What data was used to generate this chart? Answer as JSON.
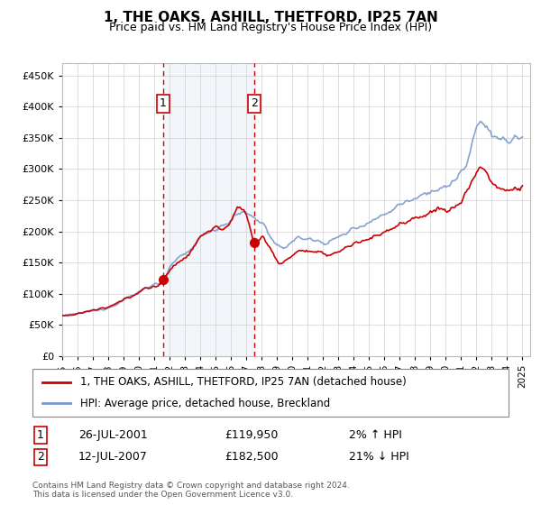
{
  "title": "1, THE OAKS, ASHILL, THETFORD, IP25 7AN",
  "subtitle": "Price paid vs. HM Land Registry's House Price Index (HPI)",
  "legend_property": "1, THE OAKS, ASHILL, THETFORD, IP25 7AN (detached house)",
  "legend_hpi": "HPI: Average price, detached house, Breckland",
  "sale1_label": "1",
  "sale1_date": "26-JUL-2001",
  "sale1_price": "£119,950",
  "sale1_hpi": "2% ↑ HPI",
  "sale2_label": "2",
  "sale2_date": "12-JUL-2007",
  "sale2_price": "£182,500",
  "sale2_hpi": "21% ↓ HPI",
  "footer": "Contains HM Land Registry data © Crown copyright and database right 2024.\nThis data is licensed under the Open Government Licence v3.0.",
  "property_color": "#cc0000",
  "hpi_color": "#7799cc",
  "sale_vline_color": "#cc0000",
  "shaded_color": "#ccddf0",
  "ylim": [
    0,
    470000
  ],
  "yticks": [
    0,
    50000,
    100000,
    150000,
    200000,
    250000,
    300000,
    350000,
    400000,
    450000
  ],
  "sale1_x": 2001.57,
  "sale2_x": 2007.53,
  "xlim_left": 1995.0,
  "xlim_right": 2025.5
}
